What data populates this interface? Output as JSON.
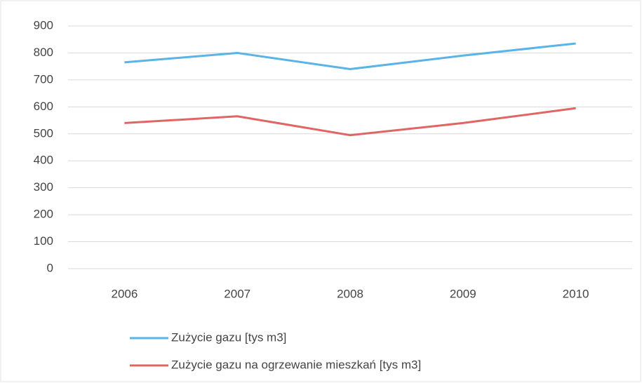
{
  "chart_data": {
    "type": "line",
    "categories": [
      "2006",
      "2007",
      "2008",
      "2009",
      "2010"
    ],
    "series": [
      {
        "name": "Zużycie gazu [tys m3]",
        "color": "#5ab4e5",
        "values": [
          765,
          800,
          740,
          790,
          835
        ]
      },
      {
        "name": "Zużycie gazu na ogrzewanie mieszkań [tys m3]",
        "color": "#e06666",
        "values": [
          540,
          565,
          495,
          540,
          595
        ]
      }
    ],
    "ylim": [
      0,
      900
    ],
    "yticks": [
      0,
      100,
      200,
      300,
      400,
      500,
      600,
      700,
      800,
      900
    ],
    "grid": true,
    "legend": "bottom"
  }
}
